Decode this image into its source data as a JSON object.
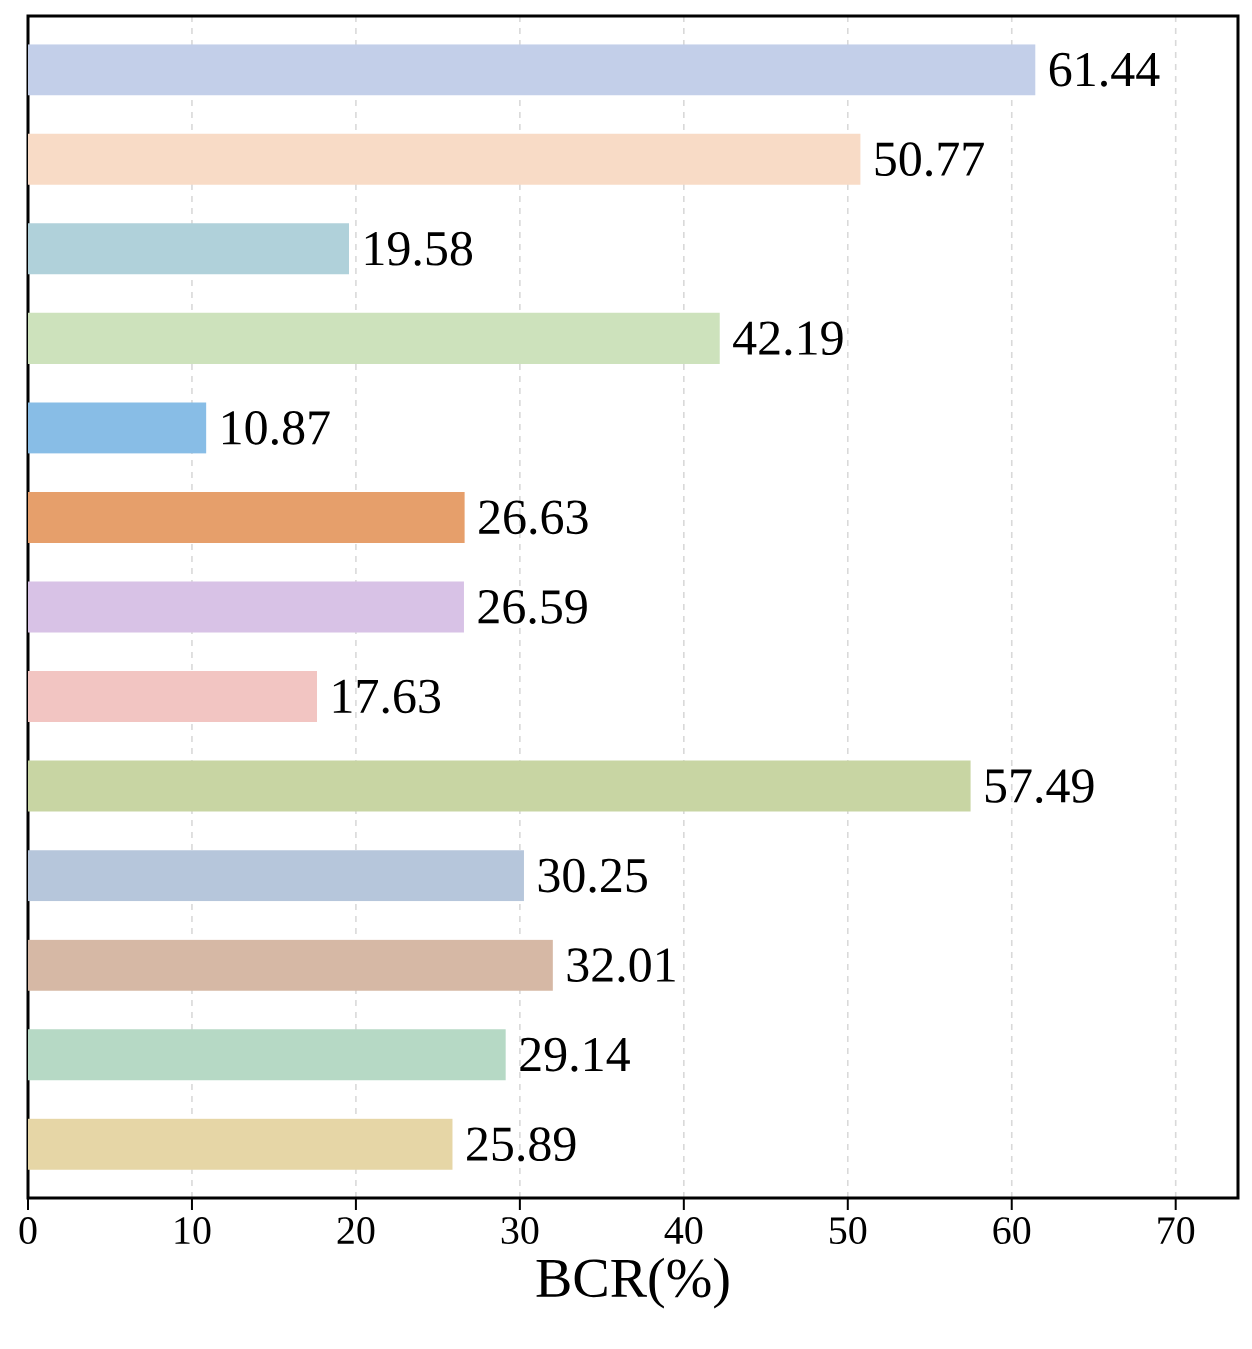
{
  "chart_data": {
    "type": "bar",
    "orientation": "horizontal",
    "xlabel": "BCR(%)",
    "categories": [
      null,
      null,
      null,
      null,
      null,
      null,
      null,
      null,
      null,
      null,
      null,
      null,
      null
    ],
    "values": [
      61.44,
      50.77,
      19.58,
      42.19,
      10.87,
      26.63,
      26.59,
      17.63,
      57.49,
      30.25,
      32.01,
      29.14,
      25.89
    ],
    "colors": [
      "#c3cfe9",
      "#f8dbc6",
      "#b0d1da",
      "#cde2bc",
      "#88bde6",
      "#e69f6b",
      "#d8c2e6",
      "#f2c5c2",
      "#c8d5a3",
      "#b6c6db",
      "#d6b8a5",
      "#b6d9c5",
      "#e6d6a6"
    ],
    "xlim": [
      0,
      73.8
    ],
    "xticks": [
      0,
      10,
      20,
      30,
      40,
      50,
      60,
      70
    ],
    "grid": "x",
    "data_labels": true
  }
}
